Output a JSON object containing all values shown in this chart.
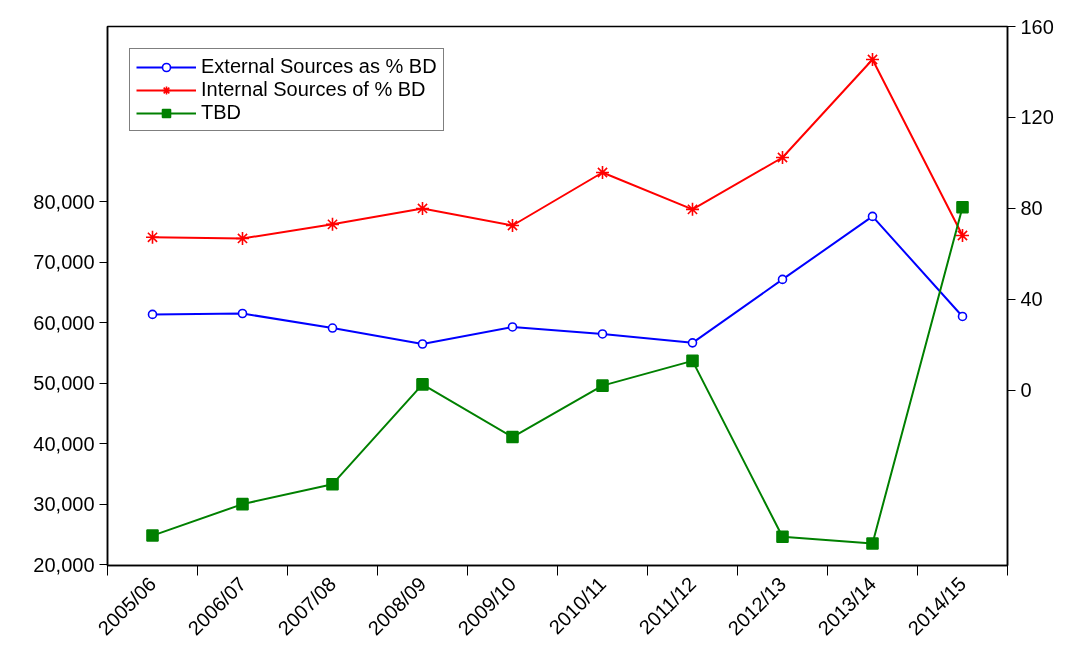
{
  "chart_data": {
    "type": "line",
    "categories": [
      "2005/06",
      "2006/07",
      "2007/08",
      "2008/09",
      "2009/10",
      "2010/11",
      "2011/12",
      "2012/13",
      "2013/14",
      "2014/15"
    ],
    "series": [
      {
        "name": "External Sources as % BD",
        "color": "#0000ff",
        "marker": "circle",
        "axis": "y2",
        "values": [
          33.4,
          33.8,
          27.4,
          20.4,
          27.9,
          24.8,
          20.9,
          48.8,
          76.5,
          32.5
        ]
      },
      {
        "name": "Internal Sources of % BD",
        "color": "#ff0000",
        "marker": "cross",
        "axis": "y2",
        "values": [
          67.3,
          66.8,
          73.0,
          80.0,
          72.5,
          95.8,
          79.6,
          102.4,
          145.5,
          68.1
        ]
      },
      {
        "name": "TBD",
        "color": "#008000",
        "marker": "square",
        "values": [
          24800,
          30000,
          33300,
          49800,
          41100,
          49600,
          53700,
          24600,
          23500,
          79100
        ]
      }
    ],
    "ylim": [
      19850,
      109000
    ],
    "yticks": [
      {
        "value": 20000,
        "label": "20,000"
      },
      {
        "value": 30000,
        "label": "30,000"
      },
      {
        "value": 40000,
        "label": "40,000"
      },
      {
        "value": 50000,
        "label": "50,000"
      },
      {
        "value": 60000,
        "label": "60,000"
      },
      {
        "value": 70000,
        "label": "70,000"
      },
      {
        "value": 80000,
        "label": "80,000"
      }
    ],
    "y2lim": [
      -77,
      160
    ],
    "y2ticks": [
      0,
      40,
      80,
      120,
      160
    ],
    "grid": false,
    "legend": "top left",
    "line_style": "solid"
  }
}
